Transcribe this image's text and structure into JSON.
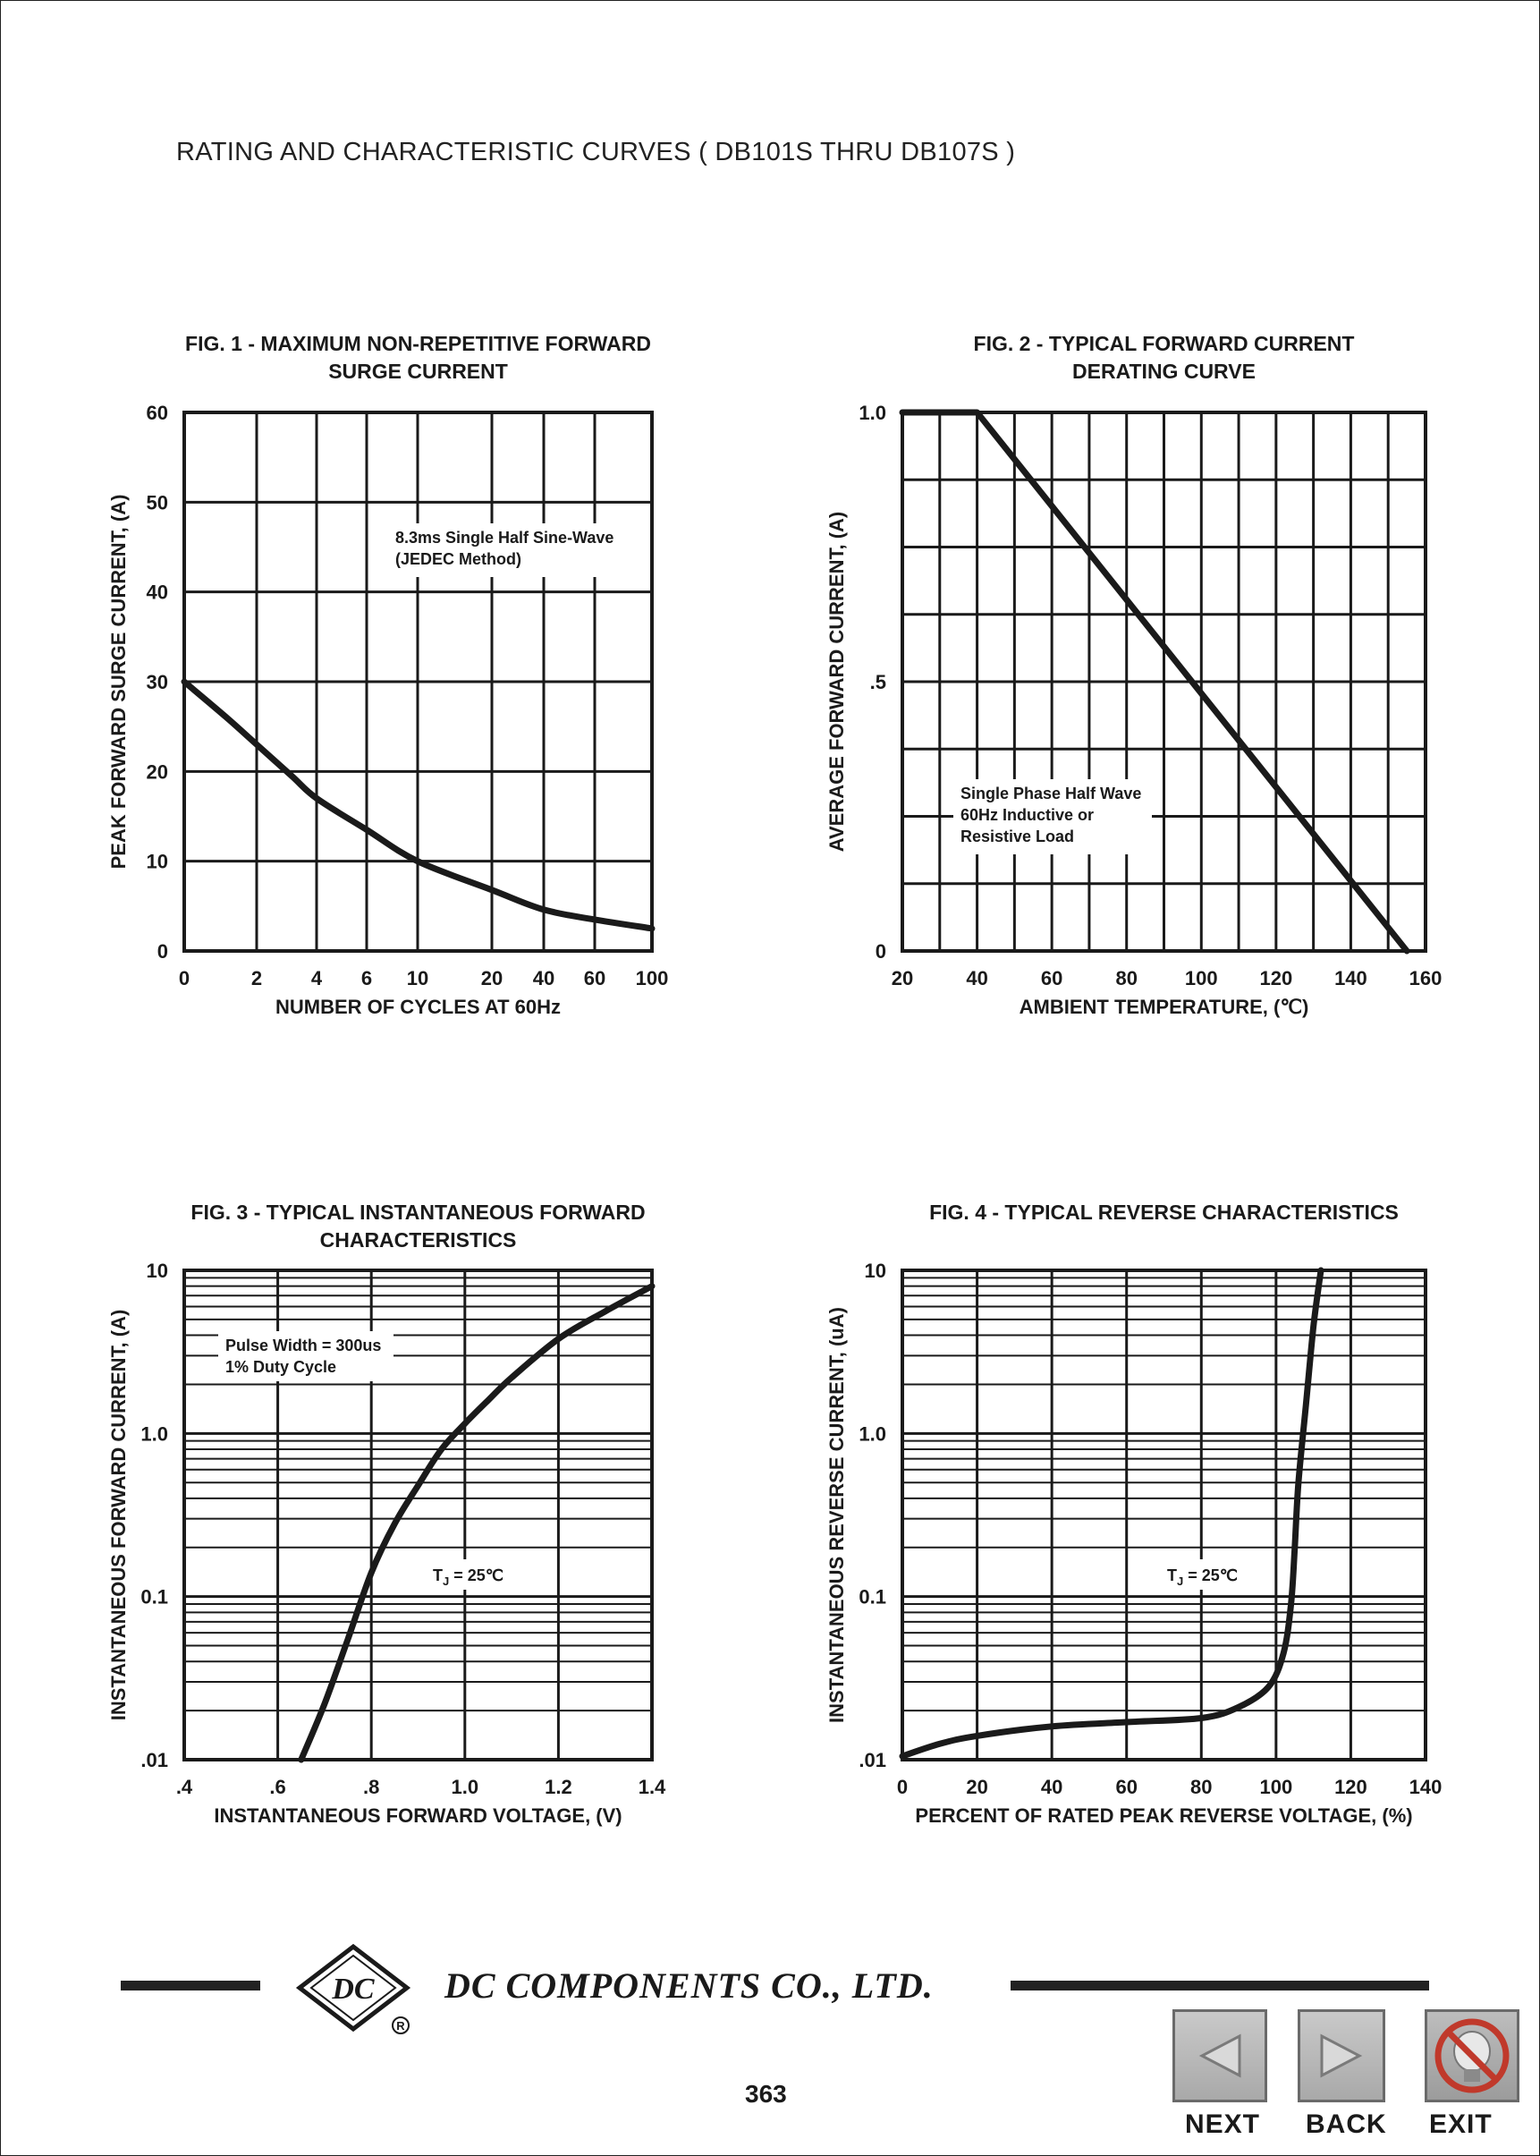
{
  "page": {
    "title": "RATING AND CHARACTERISTIC CURVES ( DB101S THRU DB107S )",
    "company": "DC COMPONENTS CO., LTD.",
    "logo_text": "DC",
    "registered_mark": "R",
    "page_number": "363"
  },
  "nav": {
    "next_label": "NEXT",
    "back_label": "BACK",
    "exit_label": "EXIT",
    "next_icon": "triangle-left-icon",
    "back_icon": "triangle-right-icon",
    "exit_icon": "no-entry-bulb-icon"
  },
  "chart_data": [
    {
      "id": "fig1",
      "type": "line",
      "title_lines": [
        "FIG. 1 - MAXIMUM NON-REPETITIVE FORWARD",
        "SURGE CURRENT"
      ],
      "xlabel": "NUMBER OF CYCLES AT 60Hz",
      "ylabel": "PEAK FORWARD SURGE CURRENT, (A)",
      "x_scale": "log (offset)",
      "x_ticks": [
        "0",
        "2",
        "4",
        "6",
        "10",
        "20",
        "40",
        "60",
        "100"
      ],
      "y_ticks": [
        "0",
        "10",
        "20",
        "30",
        "40",
        "50",
        "60"
      ],
      "ylim": [
        0,
        60
      ],
      "annotation": [
        "8.3ms Single Half Sine-Wave",
        "(JEDEC Method)"
      ],
      "series": [
        {
          "name": "surge current",
          "x": [
            1,
            1.5,
            2,
            3,
            4,
            6,
            10,
            20,
            40,
            60,
            100
          ],
          "y": [
            30,
            26,
            23,
            19.5,
            17,
            13.5,
            10,
            6.8,
            4.6,
            3.5,
            2.5
          ]
        }
      ]
    },
    {
      "id": "fig2",
      "type": "line",
      "title_lines": [
        "FIG. 2 - TYPICAL FORWARD CURRENT",
        "DERATING CURVE"
      ],
      "xlabel": "AMBIENT TEMPERATURE, (℃)",
      "ylabel": "AVERAGE FORWARD CURRENT, (A)",
      "x_ticks": [
        "20",
        "40",
        "60",
        "80",
        "100",
        "120",
        "140",
        "160"
      ],
      "y_ticks": [
        "0",
        ".5",
        "1.0"
      ],
      "xlim": [
        20,
        160
      ],
      "ylim": [
        0,
        1.0
      ],
      "annotation": [
        "Single Phase Half Wave",
        "60Hz Inductive or",
        "Resistive Load"
      ],
      "series": [
        {
          "name": "derating",
          "x": [
            20,
            40,
            155
          ],
          "y": [
            1.0,
            1.0,
            0
          ]
        }
      ]
    },
    {
      "id": "fig3",
      "type": "line",
      "title_lines": [
        "FIG. 3 - TYPICAL INSTANTANEOUS FORWARD",
        "CHARACTERISTICS"
      ],
      "xlabel": "INSTANTANEOUS FORWARD VOLTAGE, (V)",
      "ylabel": "INSTANTANEOUS FORWARD CURRENT, (A)",
      "x_ticks": [
        ".4",
        ".6",
        ".8",
        "1.0",
        "1.2",
        "1.4"
      ],
      "y_ticks": [
        ".01",
        "0.1",
        "1.0",
        "10"
      ],
      "xlim": [
        0.4,
        1.4
      ],
      "ylim": [
        0.01,
        10
      ],
      "y_scale": "log",
      "annotation": [
        "Pulse Width = 300us",
        "1% Duty Cycle"
      ],
      "condition": {
        "prefix": "T",
        "sub": "J",
        "suffix": " = 25℃"
      },
      "series": [
        {
          "name": "forward characteristic",
          "x": [
            0.65,
            0.7,
            0.75,
            0.8,
            0.85,
            0.9,
            0.95,
            1.0,
            1.05,
            1.1,
            1.2,
            1.3,
            1.4
          ],
          "y": [
            0.01,
            0.022,
            0.055,
            0.14,
            0.28,
            0.48,
            0.8,
            1.15,
            1.6,
            2.2,
            3.8,
            5.6,
            8.0
          ]
        }
      ]
    },
    {
      "id": "fig4",
      "type": "line",
      "title_lines": [
        "FIG. 4 - TYPICAL REVERSE CHARACTERISTICS"
      ],
      "xlabel": "PERCENT OF RATED PEAK REVERSE VOLTAGE, (%)",
      "ylabel": "INSTANTANEOUS REVERSE CURRENT, (uA)",
      "x_ticks": [
        "0",
        "20",
        "40",
        "60",
        "80",
        "100",
        "120",
        "140"
      ],
      "y_ticks": [
        ".01",
        "0.1",
        "1.0",
        "10"
      ],
      "xlim": [
        0,
        140
      ],
      "ylim": [
        0.01,
        10
      ],
      "y_scale": "log",
      "condition": {
        "prefix": "T",
        "sub": "J",
        "suffix": " = 25℃"
      },
      "series": [
        {
          "name": "reverse characteristic",
          "x": [
            0,
            10,
            20,
            40,
            60,
            80,
            90,
            98,
            102,
            104,
            105,
            106,
            108,
            110,
            112
          ],
          "y": [
            0.0105,
            0.0125,
            0.014,
            0.016,
            0.017,
            0.018,
            0.021,
            0.028,
            0.045,
            0.09,
            0.2,
            0.5,
            1.5,
            4.5,
            10
          ]
        }
      ]
    }
  ]
}
